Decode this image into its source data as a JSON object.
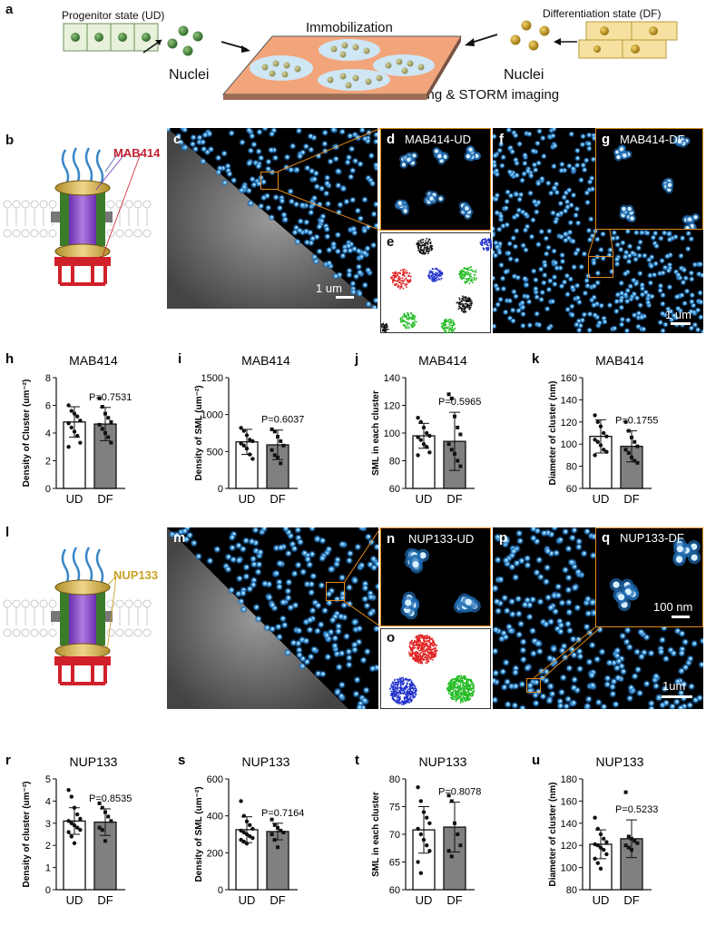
{
  "panel_a": {
    "label": "a",
    "progenitor_text": "Progenitor state (UD)",
    "differentiation_text": "Differentiation state (DF)",
    "immobilization_text": "Immobilization",
    "nuclei_left": "Nuclei",
    "nuclei_right": "Nuclei",
    "imaging_text": "IF labeling & STORM imaging"
  },
  "panel_b": {
    "label": "b",
    "antibody_label": "MAB414"
  },
  "panel_l": {
    "label": "l",
    "antibody_label": "NUP133"
  },
  "images": {
    "c": {
      "label": "c",
      "scalebar": "1 um"
    },
    "d": {
      "label": "d",
      "title": "MAB414-UD"
    },
    "e": {
      "label": "e"
    },
    "f": {
      "label": "f",
      "scalebar": "1 um"
    },
    "g": {
      "label": "g",
      "title": "MAB414-DF"
    },
    "m": {
      "label": "m"
    },
    "n": {
      "label": "n",
      "title": "NUP133-UD"
    },
    "o": {
      "label": "o"
    },
    "p": {
      "label": "p",
      "scalebar": "1um"
    },
    "q": {
      "label": "q",
      "title": "NUP133-DF",
      "scalebar": "100 nm"
    }
  },
  "colors": {
    "orange_box": "#e08a1e",
    "storm_blue": "#4aa8e8",
    "gray_bar": "#808080",
    "cluster_colors": [
      "#e02020",
      "#2233cc",
      "#22bb22",
      "#111111"
    ]
  },
  "chart_data": [
    {
      "panel": "h",
      "type": "bar",
      "title": "MAB414",
      "ylabel": "Density of Cluster (um⁻²)",
      "categories": [
        "UD",
        "DF"
      ],
      "values": [
        4.8,
        4.65
      ],
      "sd": [
        1.1,
        1.2
      ],
      "ylim": [
        0,
        8
      ],
      "yticks": [
        0,
        2,
        4,
        6,
        8
      ],
      "pvalue": "P=0.7531",
      "points": [
        [
          6.0,
          5.6,
          5.4,
          5.2,
          4.9,
          4.7,
          4.4,
          4.1,
          3.8,
          3.3,
          3.0
        ],
        [
          6.5,
          5.9,
          5.4,
          5.1,
          4.8,
          4.6,
          4.3,
          4.0,
          3.7,
          3.3
        ]
      ]
    },
    {
      "panel": "i",
      "type": "bar",
      "title": "MAB414",
      "ylabel": "Density of SML (um⁻²)",
      "categories": [
        "UD",
        "DF"
      ],
      "values": [
        630,
        590
      ],
      "sd": [
        170,
        200
      ],
      "ylim": [
        0,
        1500
      ],
      "yticks": [
        0,
        500,
        1000,
        1500
      ],
      "pvalue": "P=0.6037",
      "points": [
        [
          820,
          780,
          720,
          660,
          640,
          610,
          580,
          540,
          460,
          400
        ],
        [
          800,
          770,
          700,
          640,
          580,
          520,
          450,
          420,
          340
        ]
      ]
    },
    {
      "panel": "j",
      "type": "bar",
      "title": "MAB414",
      "ylabel": "SML in each cluster",
      "categories": [
        "UD",
        "DF"
      ],
      "values": [
        98,
        94
      ],
      "sd": [
        9,
        21
      ],
      "ylim": [
        60,
        140
      ],
      "yticks": [
        60,
        80,
        100,
        120,
        140
      ],
      "pvalue": "P=0.5965",
      "points": [
        [
          111,
          108,
          104,
          100,
          98,
          97,
          95,
          92,
          90,
          86,
          84
        ],
        [
          128,
          125,
          112,
          104,
          99,
          92,
          88,
          85,
          80,
          76
        ]
      ]
    },
    {
      "panel": "k",
      "type": "bar",
      "title": "MAB414",
      "ylabel": "Diameter of cluster (nm)",
      "categories": [
        "UD",
        "DF"
      ],
      "values": [
        107,
        98
      ],
      "sd": [
        15,
        14
      ],
      "ylim": [
        60,
        160
      ],
      "yticks": [
        60,
        80,
        100,
        120,
        140,
        160
      ],
      "pvalue": "P=0.1755",
      "points": [
        [
          126,
          120,
          116,
          110,
          107,
          104,
          102,
          99,
          95,
          93,
          90
        ],
        [
          120,
          112,
          106,
          102,
          98,
          95,
          92,
          88,
          85,
          83
        ]
      ]
    },
    {
      "panel": "r",
      "type": "bar",
      "title": "NUP133",
      "ylabel": "Density of cluster (um⁻²)",
      "categories": [
        "UD",
        "DF"
      ],
      "values": [
        3.1,
        3.05
      ],
      "sd": [
        0.6,
        0.6
      ],
      "ylim": [
        0,
        5
      ],
      "yticks": [
        0,
        1,
        2,
        3,
        4,
        5
      ],
      "pvalue": "P=0.8535",
      "points": [
        [
          4.5,
          4.2,
          3.7,
          3.4,
          3.2,
          3.1,
          3.0,
          2.9,
          2.8,
          2.7,
          2.6,
          2.4,
          2.1
        ],
        [
          3.9,
          3.7,
          3.5,
          3.3,
          3.1,
          2.8,
          2.7,
          2.2
        ]
      ]
    },
    {
      "panel": "s",
      "type": "bar",
      "title": "NUP133",
      "ylabel": "Density of SML (um⁻²)",
      "categories": [
        "UD",
        "DF"
      ],
      "values": [
        325,
        315
      ],
      "sd": [
        70,
        45
      ],
      "ylim": [
        0,
        600
      ],
      "yticks": [
        0,
        200,
        400,
        600
      ],
      "pvalue": "P=0.7164",
      "points": [
        [
          480,
          400,
          370,
          350,
          330,
          320,
          310,
          300,
          290,
          280,
          270,
          260,
          250
        ],
        [
          380,
          350,
          335,
          320,
          310,
          300,
          270,
          230
        ]
      ]
    },
    {
      "panel": "t",
      "type": "bar",
      "title": "NUP133",
      "ylabel": "SML in each cluster",
      "categories": [
        "UD",
        "DF"
      ],
      "values": [
        70.8,
        71.3
      ],
      "sd": [
        4.2,
        4.5
      ],
      "ylim": [
        60,
        80
      ],
      "yticks": [
        60,
        65,
        70,
        75,
        80
      ],
      "pvalue": "P=0.8078",
      "points": [
        [
          78.5,
          76,
          74,
          73,
          72,
          71,
          70,
          69,
          68,
          67,
          65,
          63
        ],
        [
          77,
          76,
          72,
          70,
          68,
          67,
          66
        ]
      ]
    },
    {
      "panel": "u",
      "type": "bar",
      "title": "NUP133",
      "ylabel": "Diameter of cluster (nm)",
      "categories": [
        "UD",
        "DF"
      ],
      "values": [
        121,
        126
      ],
      "sd": [
        13,
        17
      ],
      "ylim": [
        80,
        180
      ],
      "yticks": [
        80,
        100,
        120,
        140,
        160,
        180
      ],
      "pvalue": "P=0.5233",
      "points": [
        [
          145,
          135,
          130,
          126,
          123,
          121,
          120,
          118,
          116,
          112,
          108,
          104,
          99
        ],
        [
          168,
          128,
          126,
          124,
          122,
          120,
          118,
          116
        ]
      ]
    }
  ]
}
